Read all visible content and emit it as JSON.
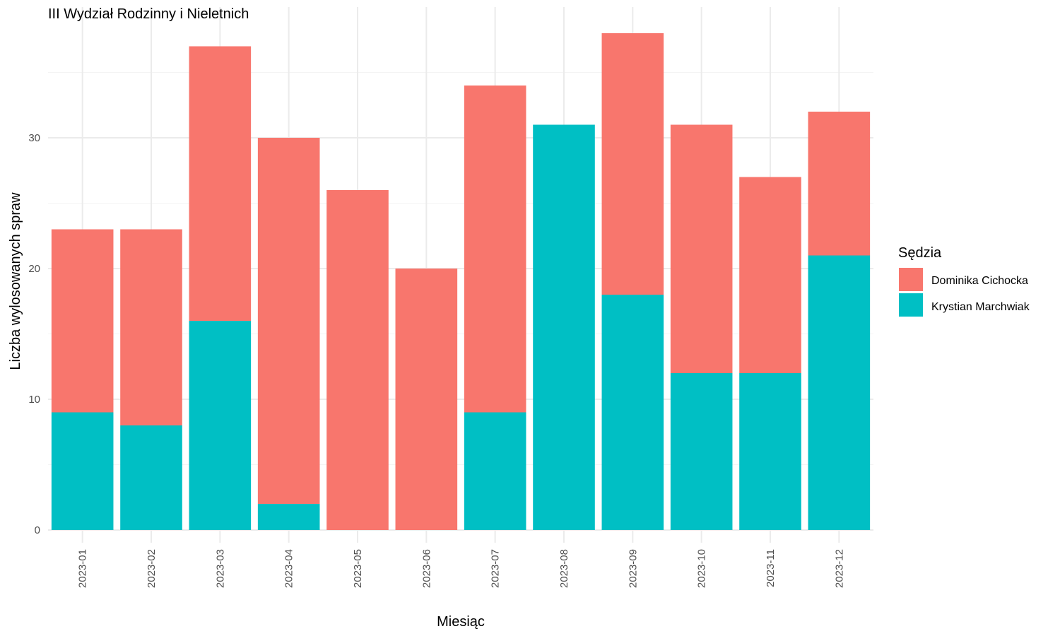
{
  "chart_data": {
    "type": "bar",
    "stacked": true,
    "title": "III Wydział Rodzinny i Nieletnich",
    "xlabel": "Miesiąc",
    "ylabel": "Liczba wylosowanych spraw",
    "categories": [
      "2023-01",
      "2023-02",
      "2023-03",
      "2023-04",
      "2023-05",
      "2023-06",
      "2023-07",
      "2023-08",
      "2023-09",
      "2023-10",
      "2023-11",
      "2023-12"
    ],
    "series": [
      {
        "name": "Dominika Cichocka",
        "color": "#F8766D",
        "values": [
          14,
          15,
          21,
          28,
          26,
          20,
          25,
          0,
          20,
          19,
          15,
          11
        ]
      },
      {
        "name": "Krystian Marchwiak",
        "color": "#00BFC4",
        "values": [
          9,
          8,
          16,
          2,
          0,
          0,
          9,
          31,
          18,
          12,
          12,
          21
        ]
      }
    ],
    "ylim": [
      0,
      40
    ],
    "yticks": [
      0,
      10,
      20,
      30
    ],
    "grid": true,
    "legend": {
      "title": "Sędzia",
      "position": "right"
    }
  }
}
